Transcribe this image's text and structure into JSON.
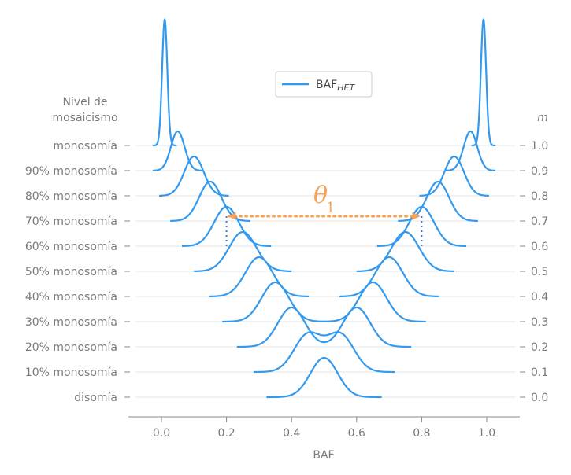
{
  "chart_data": {
    "type": "ridgeline",
    "xlabel": "BAF",
    "left_axis_title": [
      "Nivel de",
      "mosaicismo"
    ],
    "right_axis_title": "m",
    "x_ticks": [
      "0.0",
      "0.2",
      "0.4",
      "0.6",
      "0.8",
      "1.0"
    ],
    "x_tick_values": [
      0.0,
      0.2,
      0.4,
      0.6,
      0.8,
      1.0
    ],
    "xlim": [
      -0.1,
      1.1
    ],
    "legend": {
      "label": "BAF",
      "label_sub": "HET",
      "placement": "upper-center"
    },
    "series_color": "#3399ee",
    "rows": [
      {
        "label": "disomía",
        "m": 0.0,
        "m_label": "0.0",
        "peaks": [
          0.5
        ],
        "sd": 0.042,
        "extent": [
          0.323,
          0.677
        ]
      },
      {
        "label": "10% monosomía",
        "m": 0.1,
        "m_label": "0.1",
        "peaks": [
          0.45,
          0.55
        ],
        "sd": 0.042,
        "extent": [
          0.283,
          0.717
        ]
      },
      {
        "label": "20% monosomía",
        "m": 0.2,
        "m_label": "0.2",
        "peaks": [
          0.4,
          0.6
        ],
        "sd": 0.042,
        "extent": [
          0.232,
          0.768
        ]
      },
      {
        "label": "30% monosomía",
        "m": 0.3,
        "m_label": "0.3",
        "peaks": [
          0.35,
          0.65
        ],
        "sd": 0.042,
        "extent": [
          0.187,
          0.813
        ]
      },
      {
        "label": "40% monosomía",
        "m": 0.4,
        "m_label": "0.4",
        "peaks": [
          0.3,
          0.7
        ],
        "sd": 0.042,
        "extent": [
          0.147,
          0.853
        ]
      },
      {
        "label": "50% monosomía",
        "m": 0.5,
        "m_label": "0.5",
        "peaks": [
          0.25,
          0.75
        ],
        "sd": 0.042,
        "extent": [
          0.1,
          0.9
        ]
      },
      {
        "label": "60% monosomía",
        "m": 0.6,
        "m_label": "0.6",
        "peaks": [
          0.2,
          0.8
        ],
        "sd": 0.038,
        "extent": [
          0.063,
          0.937
        ]
      },
      {
        "label": "70% monosomía",
        "m": 0.7,
        "m_label": "0.7",
        "peaks": [
          0.15,
          0.85
        ],
        "sd": 0.034,
        "extent": [
          0.027,
          0.973
        ]
      },
      {
        "label": "80% monosomía",
        "m": 0.8,
        "m_label": "0.8",
        "peaks": [
          0.1,
          0.9
        ],
        "sd": 0.03,
        "extent": [
          -0.007,
          1.007
        ]
      },
      {
        "label": "90% monosomía",
        "m": 0.9,
        "m_label": "0.9",
        "peaks": [
          0.05,
          0.95
        ],
        "sd": 0.021,
        "extent": [
          -0.027,
          1.027
        ]
      },
      {
        "label": "monosomía",
        "m": 1.0,
        "m_label": "1.0",
        "peaks": [
          0.01,
          0.99
        ],
        "sd": 0.008,
        "extent": [
          -0.027,
          1.027
        ]
      }
    ],
    "peak_heights": [
      50,
      50,
      50,
      50,
      50,
      50,
      50,
      50,
      50,
      50,
      160
    ],
    "annotation": {
      "symbol": "θ",
      "subscript": "1",
      "row_m": 0.6,
      "arrow_from": 0.2,
      "arrow_to": 0.8,
      "color": "#f5a35a",
      "guide_color": "#4477dd"
    }
  }
}
